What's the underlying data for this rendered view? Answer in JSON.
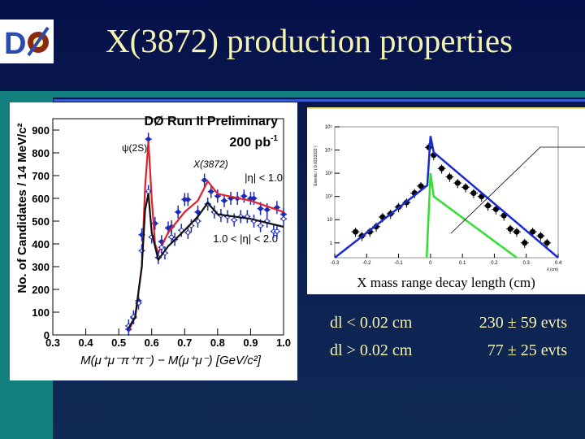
{
  "slide": {
    "title": "X(3872) production properties",
    "logo_text": "DØ"
  },
  "stats": [
    {
      "cut": "dl < 0.02 cm",
      "value": "230 ± 59 evts"
    },
    {
      "cut": "dl > 0.02 cm",
      "value": "77 ± 25 evts"
    }
  ],
  "colors": {
    "background": "#0d2152",
    "teal": "#12807e",
    "title": "#f5f3b0",
    "fit_red": "#e0202a",
    "fit_black": "#111111",
    "points": "#1a2ab8",
    "fit_blue": "#1a2ad0",
    "fit_green": "#30e030"
  },
  "chart_data": [
    {
      "type": "line",
      "title": "DØ Run II Preliminary",
      "subtitle": "200 pb",
      "subtitle_sup": "-1",
      "xlabel": "M(μ⁺μ⁻π⁺π⁻) − M(μ⁺μ⁻) [GeV/c²]",
      "ylabel": "No. of Candidates / 14 MeV/c²",
      "xlim": [
        0.3,
        1.0
      ],
      "ylim": [
        0,
        950
      ],
      "xticks": [
        "0.3",
        "0.4",
        "0.5",
        "0.6",
        "0.7",
        "0.8",
        "0.9",
        "1.0"
      ],
      "yticks": [
        "0",
        "100",
        "200",
        "300",
        "400",
        "500",
        "600",
        "700",
        "800",
        "900"
      ],
      "annotations": [
        "ψ(2S)",
        "X(3872)"
      ],
      "series": [
        {
          "name": "|η| < 1.0",
          "color": "#e0202a",
          "fit": [
            [
              0.53,
              20
            ],
            [
              0.55,
              80
            ],
            [
              0.57,
              300
            ],
            [
              0.58,
              650
            ],
            [
              0.59,
              850
            ],
            [
              0.6,
              600
            ],
            [
              0.61,
              400
            ],
            [
              0.62,
              360
            ],
            [
              0.65,
              450
            ],
            [
              0.7,
              540
            ],
            [
              0.74,
              590
            ],
            [
              0.77,
              675
            ],
            [
              0.8,
              620
            ],
            [
              0.9,
              590
            ],
            [
              1.0,
              540
            ]
          ],
          "points": [
            [
              0.53,
              25
            ],
            [
              0.545,
              75
            ],
            [
              0.56,
              150
            ],
            [
              0.57,
              440
            ],
            [
              0.59,
              860
            ],
            [
              0.61,
              490
            ],
            [
              0.63,
              410
            ],
            [
              0.65,
              470
            ],
            [
              0.66,
              475
            ],
            [
              0.68,
              540
            ],
            [
              0.7,
              595
            ],
            [
              0.71,
              595
            ],
            [
              0.74,
              540
            ],
            [
              0.76,
              680
            ],
            [
              0.78,
              630
            ],
            [
              0.8,
              610
            ],
            [
              0.82,
              590
            ],
            [
              0.84,
              600
            ],
            [
              0.86,
              600
            ],
            [
              0.88,
              610
            ],
            [
              0.9,
              600
            ],
            [
              0.91,
              600
            ],
            [
              0.93,
              555
            ],
            [
              0.95,
              550
            ],
            [
              0.98,
              560
            ],
            [
              1.0,
              530
            ]
          ]
        },
        {
          "name": "1.0 < |η| < 2.0",
          "color": "#111111",
          "fit": [
            [
              0.53,
              30
            ],
            [
              0.55,
              80
            ],
            [
              0.57,
              300
            ],
            [
              0.58,
              550
            ],
            [
              0.59,
              620
            ],
            [
              0.6,
              450
            ],
            [
              0.62,
              330
            ],
            [
              0.65,
              390
            ],
            [
              0.7,
              460
            ],
            [
              0.74,
              520
            ],
            [
              0.77,
              580
            ],
            [
              0.8,
              530
            ],
            [
              0.9,
              510
            ],
            [
              1.0,
              475
            ]
          ],
          "points": [
            [
              0.53,
              40
            ],
            [
              0.545,
              80
            ],
            [
              0.56,
              140
            ],
            [
              0.57,
              370
            ],
            [
              0.59,
              630
            ],
            [
              0.6,
              430
            ],
            [
              0.62,
              340
            ],
            [
              0.63,
              385
            ],
            [
              0.64,
              360
            ],
            [
              0.66,
              430
            ],
            [
              0.67,
              420
            ],
            [
              0.69,
              460
            ],
            [
              0.71,
              450
            ],
            [
              0.72,
              480
            ],
            [
              0.74,
              500
            ],
            [
              0.77,
              575
            ],
            [
              0.79,
              540
            ],
            [
              0.81,
              525
            ],
            [
              0.83,
              520
            ],
            [
              0.85,
              505
            ],
            [
              0.87,
              520
            ],
            [
              0.89,
              520
            ],
            [
              0.91,
              500
            ],
            [
              0.93,
              480
            ],
            [
              0.95,
              500
            ],
            [
              0.97,
              455
            ],
            [
              0.98,
              455
            ],
            [
              1.0,
              510
            ]
          ]
        }
      ]
    },
    {
      "type": "line",
      "yscale": "log",
      "xlabel": "λ (cm)",
      "ylabel": "Events / ( 0.0233333 )",
      "caption": "X mass range decay length (cm)",
      "xlim": [
        -0.3,
        0.4
      ],
      "ylim": [
        0.23,
        100000
      ],
      "xticks": [
        "-0.3",
        "-0.2",
        "-0.1",
        "0",
        "0.1",
        "0.2",
        "0.3",
        "0.4"
      ],
      "yticks": [
        "1",
        "10",
        "10²",
        "10³",
        "10⁴",
        "10⁵"
      ],
      "series": [
        {
          "color": "#1a2ad0",
          "fit": [
            [
              -0.3,
              0.23
            ],
            [
              -0.01,
              300
            ],
            [
              0,
              40000
            ],
            [
              0.01,
              8000
            ],
            [
              0.4,
              0.23
            ]
          ]
        },
        {
          "color": "#30e030",
          "fit": [
            [
              -0.012,
              0.23
            ],
            [
              0,
              1000
            ],
            [
              0.01,
              100
            ],
            [
              0.27,
              0.23
            ]
          ]
        },
        {
          "color": "#000000",
          "points": [
            [
              -0.235,
              3
            ],
            [
              -0.215,
              2
            ],
            [
              -0.19,
              3
            ],
            [
              -0.17,
              5
            ],
            [
              -0.15,
              13
            ],
            [
              -0.125,
              18
            ],
            [
              -0.1,
              35
            ],
            [
              -0.075,
              55
            ],
            [
              -0.05,
              140
            ],
            [
              -0.03,
              280
            ],
            [
              -0.005,
              13000
            ],
            [
              0.01,
              6000
            ],
            [
              0.035,
              1600
            ],
            [
              0.06,
              700
            ],
            [
              0.085,
              380
            ],
            [
              0.11,
              250
            ],
            [
              0.135,
              140
            ],
            [
              0.16,
              100
            ],
            [
              0.18,
              40
            ],
            [
              0.205,
              28
            ],
            [
              0.23,
              15
            ],
            [
              0.25,
              4
            ],
            [
              0.27,
              3
            ],
            [
              0.295,
              1
            ],
            [
              0.32,
              3
            ],
            [
              0.345,
              2
            ],
            [
              0.365,
              1
            ]
          ]
        }
      ]
    }
  ]
}
